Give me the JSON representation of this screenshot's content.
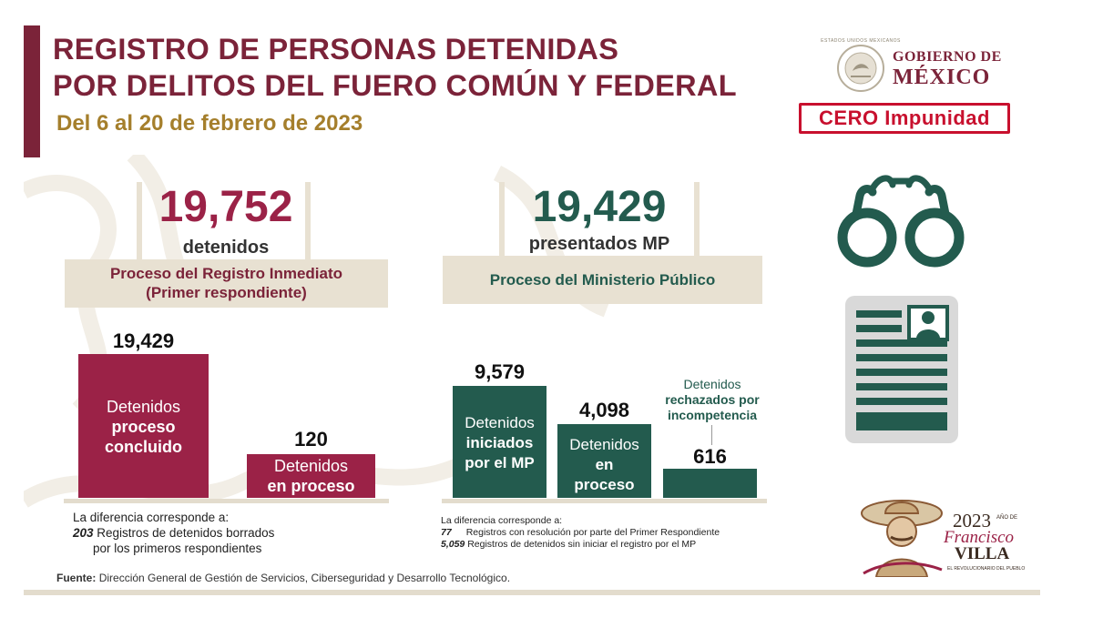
{
  "header": {
    "title_line1": "REGISTRO DE PERSONAS DETENIDAS",
    "title_line2": "POR DELITOS DEL FUERO COMÚN Y FEDERAL",
    "date_range": "Del 6 al 20 de febrero de 2023"
  },
  "branding": {
    "government_line1": "GOBIERNO DE",
    "government_line2": "MÉXICO",
    "seal_text": "ESTADOS UNIDOS MEXICANOS",
    "stamp": "CERO Impunidad",
    "year_logo": {
      "year": "2023",
      "small": "AÑO DE",
      "name1": "Francisco",
      "name2": "VILLA",
      "tagline": "EL REVOLUCIONARIO DEL PUEBLO"
    }
  },
  "left_panel": {
    "total": "19,752",
    "total_label": "detenidos",
    "process_title_line1": "Proceso del Registro Inmediato",
    "process_title_line2": "(Primer respondiente)",
    "diff_intro": "La diferencia corresponde a:",
    "diff_value": "203",
    "diff_text_line1": "Registros de detenidos borrados",
    "diff_text_line2": "por los primeros respondientes"
  },
  "right_panel": {
    "total": "19,429",
    "total_label": "presentados MP",
    "process_title": "Proceso del Ministerio Público",
    "diff_intro": "La diferencia corresponde a:",
    "diff_items": [
      {
        "value": "77",
        "text": "Registros con resolución por parte del Primer Respondiente"
      },
      {
        "value": "5,059",
        "text": "Registros de detenidos sin iniciar el registro por el MP"
      }
    ]
  },
  "chart_data": [
    {
      "type": "bar",
      "categories": [
        "Detenidos proceso concluido",
        "Detenidos en proceso"
      ],
      "values": [
        19429,
        120
      ],
      "value_labels": [
        "19,429",
        "120"
      ],
      "bar_labels": [
        {
          "line1": "Detenidos",
          "line2": "proceso",
          "line3": "concluido"
        },
        {
          "line1": "Detenidos",
          "line2": "en proceso"
        }
      ],
      "color": "#9b2247"
    },
    {
      "type": "bar",
      "categories": [
        "Detenidos iniciados por el MP",
        "Detenidos en proceso",
        "Detenidos rechazados por incompetencia"
      ],
      "values": [
        9579,
        4098,
        616
      ],
      "value_labels": [
        "9,579",
        "4,098",
        "616"
      ],
      "bar_labels": [
        {
          "line1": "Detenidos",
          "line2": "iniciados",
          "line3": "por el MP"
        },
        {
          "line1": "Detenidos",
          "line2": "en",
          "line3": "proceso"
        },
        {
          "line1": "Detenidos",
          "line2": "rechazados por",
          "line3": "incompetencia"
        }
      ],
      "color": "#235b4e"
    }
  ],
  "footer": {
    "source_label": "Fuente:",
    "source_text": "Dirección General de Gestión de Servicios, Ciberseguridad y Desarrollo Tecnológico."
  },
  "colors": {
    "guinda": "#9b2247",
    "guinda_dark": "#7b2339",
    "green": "#235b4e",
    "gold": "#a57f2c",
    "beige": "#e8e1d2",
    "stamp_red": "#c8102e",
    "icon_gray": "#d9d9d9"
  },
  "icons": [
    "handcuffs-icon",
    "id-document-icon",
    "seal-icon",
    "villa-portrait-icon"
  ]
}
